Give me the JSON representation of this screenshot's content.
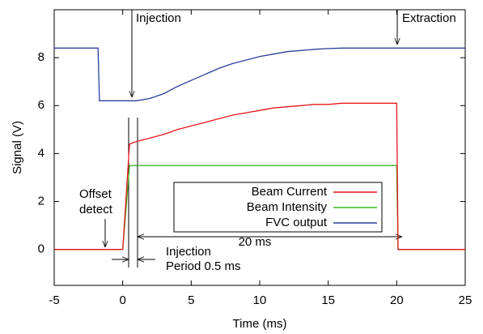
{
  "chart_data": {
    "type": "line",
    "xlabel": "Time (ms)",
    "ylabel": "Signal (V)",
    "x": [
      -5,
      -2,
      -1.8,
      -1.7,
      0,
      0.5,
      1,
      2,
      3,
      4,
      5,
      6,
      7,
      8,
      9,
      10,
      11,
      12,
      13,
      14,
      15,
      16,
      17,
      18,
      19,
      20,
      20.1,
      25
    ],
    "series": [
      {
        "name": "Beam Current",
        "color": "#e8151b",
        "values": [
          0,
          0,
          0,
          0,
          0,
          4.4,
          4.5,
          4.65,
          4.8,
          5.0,
          5.15,
          5.3,
          5.45,
          5.6,
          5.7,
          5.8,
          5.9,
          5.95,
          6.0,
          6.05,
          6.05,
          6.1,
          6.1,
          6.1,
          6.1,
          6.1,
          0,
          0
        ]
      },
      {
        "name": "Beam Intensity",
        "color": "#3cb521",
        "values": [
          0,
          0,
          0,
          0,
          0,
          3.5,
          3.5,
          3.5,
          3.5,
          3.5,
          3.5,
          3.5,
          3.5,
          3.5,
          3.5,
          3.5,
          3.5,
          3.5,
          3.5,
          3.5,
          3.5,
          3.5,
          3.5,
          3.5,
          3.5,
          3.5,
          0,
          0
        ]
      },
      {
        "name": "FVC output",
        "color": "#2a3f9a",
        "values": [
          8.4,
          8.4,
          8.4,
          6.2,
          6.2,
          6.2,
          6.2,
          6.3,
          6.5,
          6.8,
          7.05,
          7.3,
          7.55,
          7.75,
          7.9,
          8.05,
          8.15,
          8.25,
          8.3,
          8.35,
          8.38,
          8.4,
          8.4,
          8.4,
          8.4,
          8.4,
          8.4,
          8.4
        ]
      }
    ],
    "xlim": [
      -5,
      25
    ],
    "xticks": [
      -5,
      0,
      5,
      10,
      15,
      20,
      25
    ],
    "ylim": [
      -1.5,
      10
    ],
    "yticks": [
      0,
      2,
      4,
      6,
      8
    ],
    "grid": false,
    "legend": "center",
    "annotations": [
      "Injection",
      "Extraction",
      "Offset",
      "detect",
      "20 ms",
      "Injection",
      "Period 0.5 ms"
    ]
  }
}
